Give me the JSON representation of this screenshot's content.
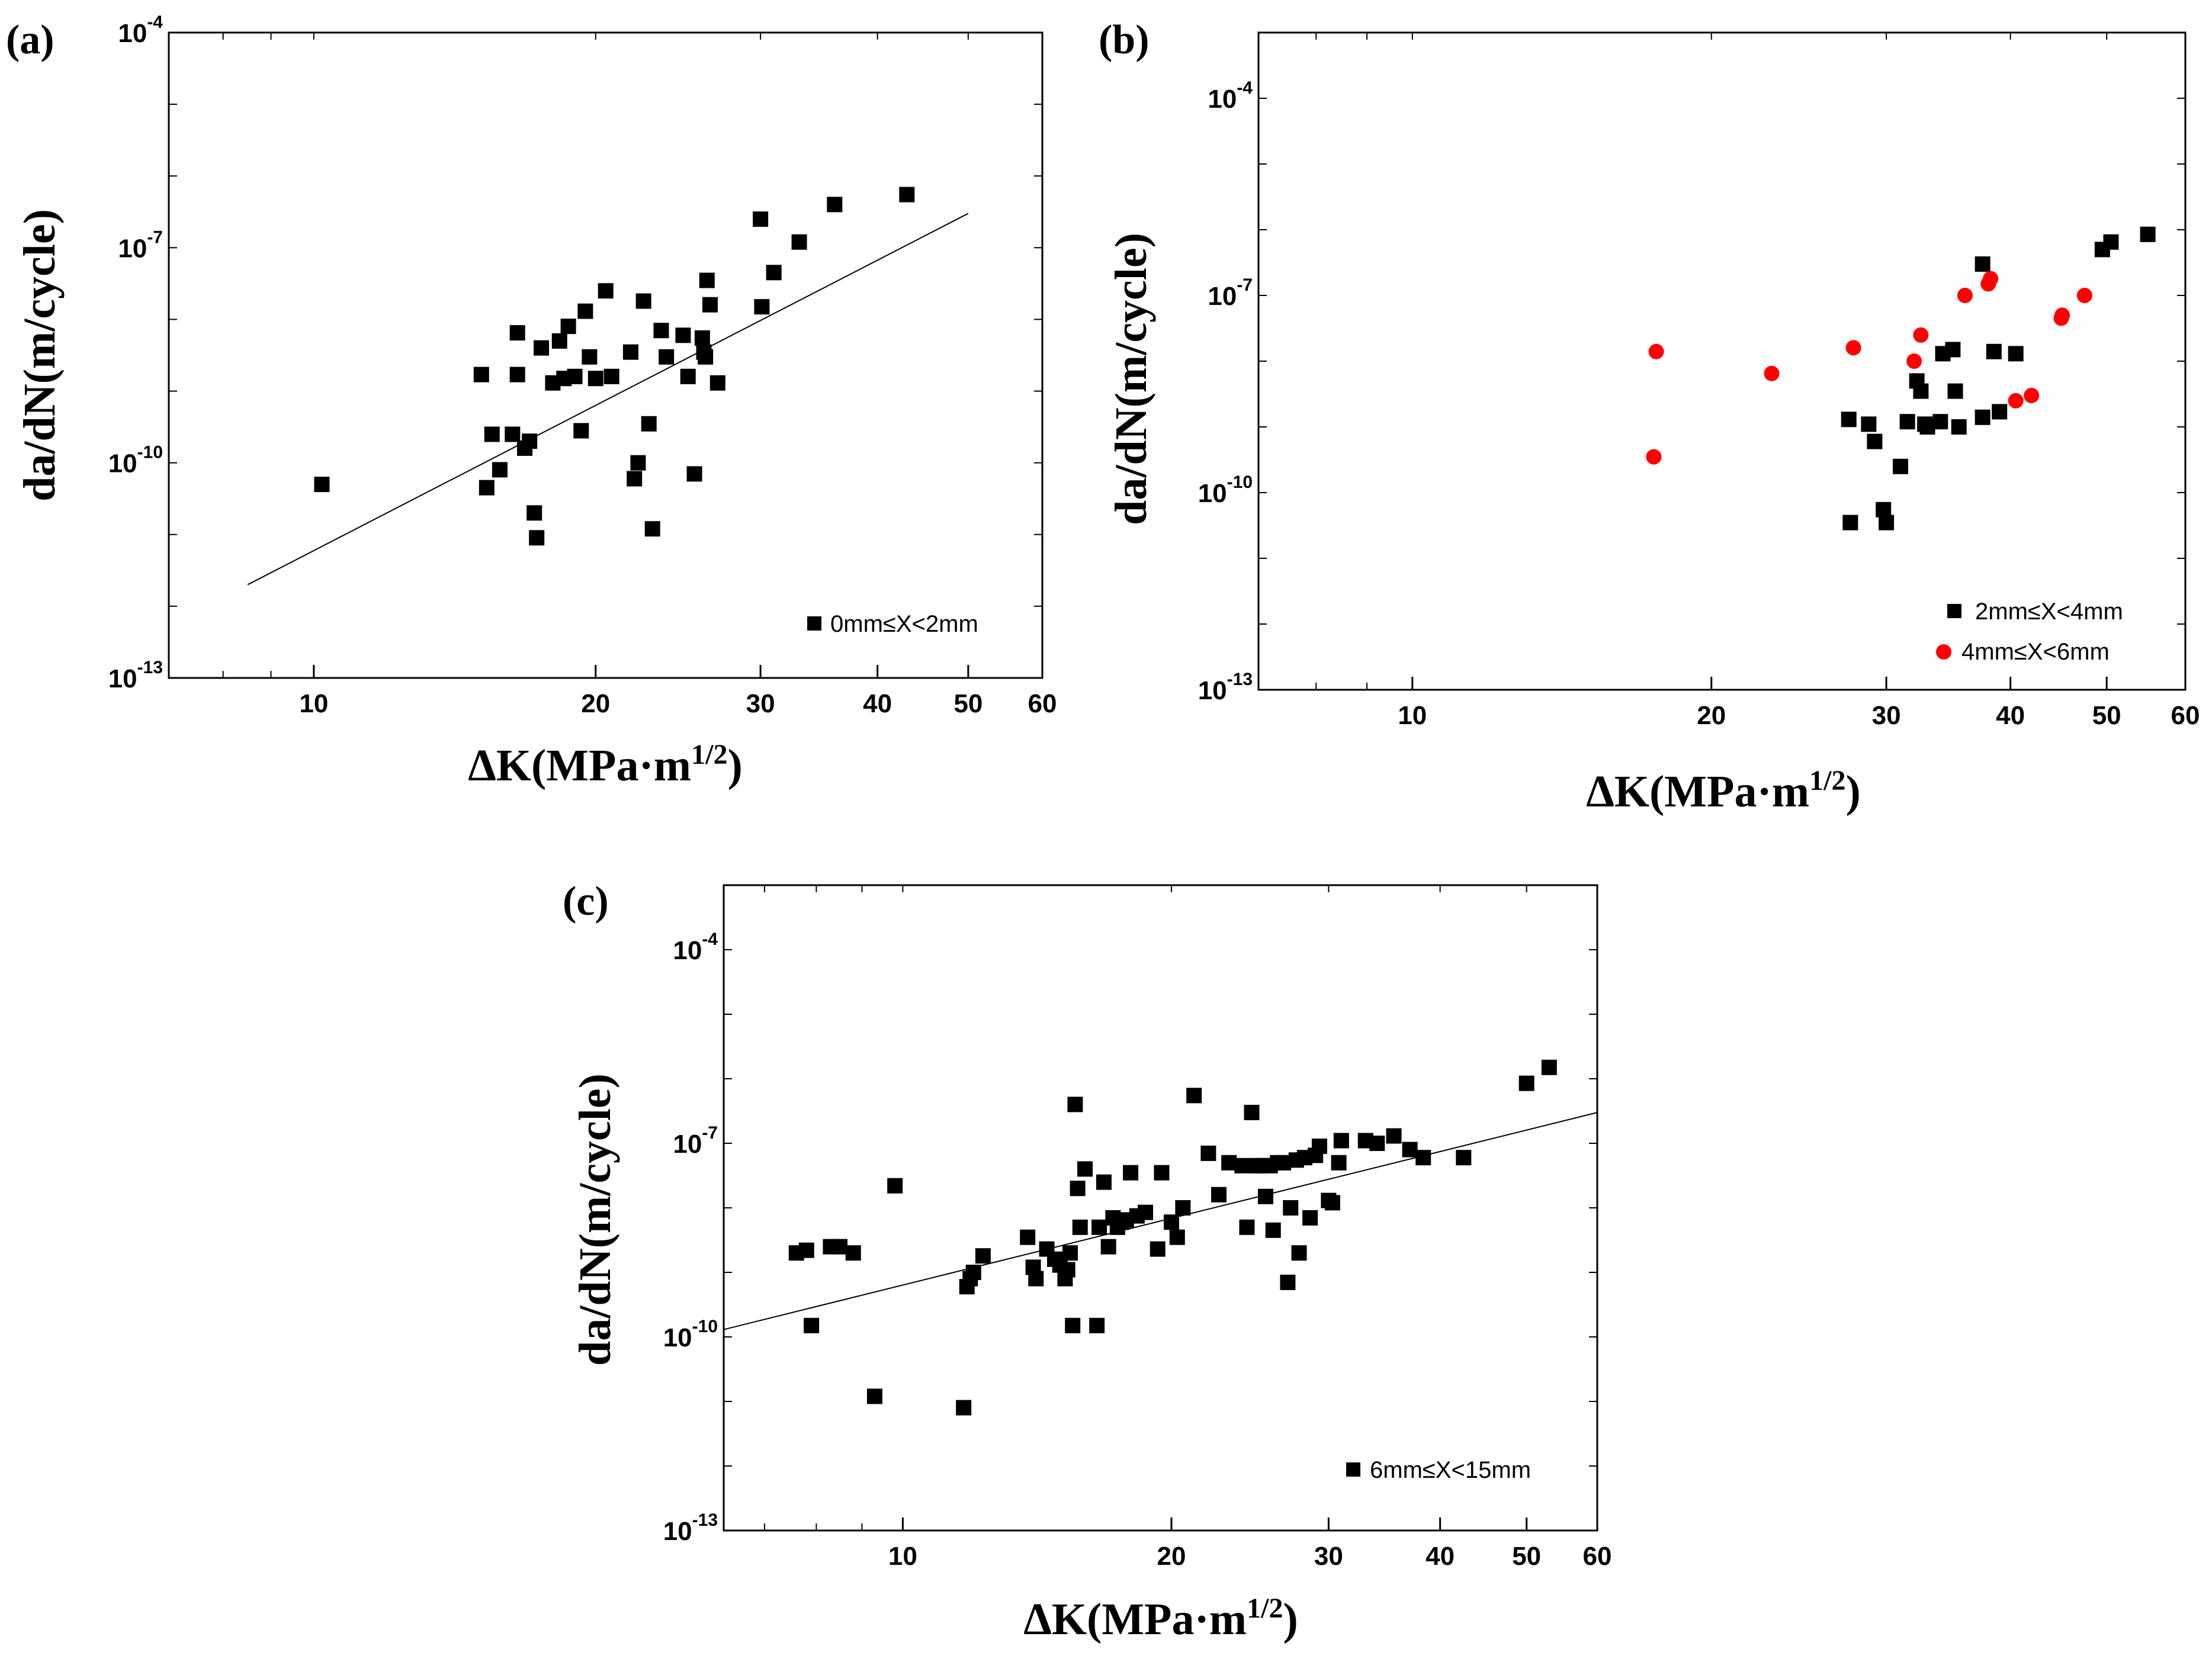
{
  "chart_data": [
    {
      "panel": "(a)",
      "type": "scatter",
      "xlabel_prefix": "ΔK",
      "xlabel_unit": "(MPa·m",
      "xlabel_exp": "1/2",
      "xlabel_close": ")",
      "ylabel_prefix": "da/dN",
      "ylabel_unit": "(m/cycle)",
      "xscale": "log",
      "yscale": "log",
      "xlim": [
        7,
        60
      ],
      "ylim": [
        1e-13,
        0.0001
      ],
      "xticks": [
        10,
        20,
        30,
        40,
        50,
        60
      ],
      "xtick_labels": [
        "10",
        "20",
        "30",
        "40",
        "50",
        "60"
      ],
      "yticks": [
        1e-13,
        1e-10,
        1e-07,
        0.0001
      ],
      "ytick_labels": [
        "10",
        "10",
        "10",
        "10"
      ],
      "ytick_exps": [
        "-13",
        "-10",
        "-7",
        "-4"
      ],
      "legend_position": "bottom-right",
      "series": [
        {
          "name": "0mm≤X<2mm",
          "marker": "square",
          "color": "#000000",
          "points": [
            [
              10.2,
              5e-11
            ],
            [
              15.1,
              1.7e-09
            ],
            [
              15.3,
              4.5e-11
            ],
            [
              15.5,
              2.5e-10
            ],
            [
              15.8,
              8e-11
            ],
            [
              16.3,
              2.5e-10
            ],
            [
              16.5,
              6.5e-09
            ],
            [
              16.5,
              1.7e-09
            ],
            [
              16.8,
              1.6e-10
            ],
            [
              17.0,
              2e-10
            ],
            [
              17.2,
              2e-11
            ],
            [
              17.3,
              9e-12
            ],
            [
              17.5,
              4e-09
            ],
            [
              18.0,
              1.3e-09
            ],
            [
              18.3,
              5e-09
            ],
            [
              18.5,
              1.5e-09
            ],
            [
              18.7,
              8e-09
            ],
            [
              19.0,
              1.6e-09
            ],
            [
              19.3,
              2.8e-10
            ],
            [
              19.5,
              1.3e-08
            ],
            [
              19.7,
              3e-09
            ],
            [
              20.0,
              1.5e-09
            ],
            [
              20.5,
              2.5e-08
            ],
            [
              20.8,
              1.6e-09
            ],
            [
              21.8,
              3.5e-09
            ],
            [
              22.0,
              6e-11
            ],
            [
              22.2,
              1e-10
            ],
            [
              22.5,
              1.8e-08
            ],
            [
              22.8,
              3.5e-10
            ],
            [
              23.0,
              1.2e-11
            ],
            [
              23.5,
              7e-09
            ],
            [
              23.8,
              3e-09
            ],
            [
              24.8,
              6e-09
            ],
            [
              25.1,
              1.6e-09
            ],
            [
              25.5,
              7e-11
            ],
            [
              26.0,
              5.5e-09
            ],
            [
              26.1,
              3.5e-09
            ],
            [
              26.2,
              3e-09
            ],
            [
              26.3,
              3.5e-08
            ],
            [
              26.5,
              1.6e-08
            ],
            [
              27.0,
              1.3e-09
            ],
            [
              30.0,
              2.5e-07
            ],
            [
              30.1,
              1.5e-08
            ],
            [
              31.0,
              4.5e-08
            ],
            [
              33.0,
              1.2e-07
            ],
            [
              36.0,
              4e-07
            ],
            [
              43.0,
              5.5e-07
            ]
          ]
        }
      ],
      "fit_line": {
        "x": [
          8.5,
          50
        ],
        "y": [
          2e-12,
          3e-07
        ]
      }
    },
    {
      "panel": "(b)",
      "type": "scatter",
      "xlabel_prefix": "ΔK",
      "xlabel_unit": "(MPa·m",
      "xlabel_exp": "1/2",
      "xlabel_close": ")",
      "ylabel_prefix": "da/dN",
      "ylabel_unit": "(m/cycle)",
      "xscale": "log",
      "yscale": "log",
      "xlim": [
        7,
        60
      ],
      "ylim": [
        1e-13,
        0.001
      ],
      "xticks": [
        10,
        20,
        30,
        40,
        50,
        60
      ],
      "xtick_labels": [
        "10",
        "20",
        "30",
        "40",
        "50",
        "60"
      ],
      "yticks": [
        1e-13,
        1e-10,
        1e-07,
        0.0001
      ],
      "ytick_labels": [
        "10",
        "10",
        "10",
        "10"
      ],
      "ytick_exps": [
        "-13",
        "-10",
        "-7",
        "-4"
      ],
      "legend_position": "bottom-right",
      "series": [
        {
          "name": "2mm≤X<4mm",
          "marker": "square",
          "color": "#000000",
          "points": [
            [
              27.5,
              1.3e-09
            ],
            [
              27.6,
              3.5e-11
            ],
            [
              28.8,
              1.1e-09
            ],
            [
              29.2,
              6e-10
            ],
            [
              29.8,
              5.5e-11
            ],
            [
              30.0,
              3.5e-11
            ],
            [
              31.0,
              2.5e-10
            ],
            [
              31.5,
              1.2e-09
            ],
            [
              32.2,
              5e-09
            ],
            [
              32.5,
              3.5e-09
            ],
            [
              32.8,
              1.1e-09
            ],
            [
              33.0,
              1e-09
            ],
            [
              34.0,
              1.2e-09
            ],
            [
              34.2,
              1.3e-08
            ],
            [
              35.0,
              1.5e-08
            ],
            [
              35.2,
              3.5e-09
            ],
            [
              35.5,
              1e-09
            ],
            [
              37.5,
              3e-07
            ],
            [
              37.5,
              1.4e-09
            ],
            [
              38.5,
              1.4e-08
            ],
            [
              39.0,
              1.7e-09
            ],
            [
              40.5,
              1.3e-08
            ],
            [
              49.5,
              5e-07
            ],
            [
              50.5,
              6.5e-07
            ],
            [
              55.0,
              8.5e-07
            ]
          ]
        },
        {
          "name": "4mm≤X<6mm",
          "marker": "circle",
          "color": "#ff0000",
          "points": [
            [
              17.5,
              3.5e-10
            ],
            [
              17.6,
              1.4e-08
            ],
            [
              23.0,
              6.5e-09
            ],
            [
              27.8,
              1.6e-08
            ],
            [
              32.0,
              1e-08
            ],
            [
              32.5,
              2.5e-08
            ],
            [
              36.0,
              1e-07
            ],
            [
              38.0,
              1.5e-07
            ],
            [
              38.2,
              1.8e-07
            ],
            [
              40.5,
              2.5e-09
            ],
            [
              42.0,
              3e-09
            ],
            [
              45.0,
              4.5e-08
            ],
            [
              45.1,
              5e-08
            ],
            [
              47.5,
              1e-07
            ]
          ]
        }
      ]
    },
    {
      "panel": "(c)",
      "type": "scatter",
      "xlabel_prefix": "ΔK",
      "xlabel_unit": "(MPa·m",
      "xlabel_exp": "1/2",
      "xlabel_close": ")",
      "ylabel_prefix": "da/dN",
      "ylabel_unit": "(m/cycle)",
      "xscale": "log",
      "yscale": "log",
      "xlim": [
        6.3,
        60
      ],
      "ylim": [
        1e-13,
        0.001
      ],
      "xticks": [
        10,
        20,
        30,
        40,
        50,
        60
      ],
      "xtick_labels": [
        "10",
        "20",
        "30",
        "40",
        "50",
        "60"
      ],
      "yticks": [
        1e-13,
        1e-10,
        1e-07,
        0.0001
      ],
      "ytick_labels": [
        "10",
        "10",
        "10",
        "10"
      ],
      "ytick_exps": [
        "-13",
        "-10",
        "-7",
        "-4"
      ],
      "legend_position": "bottom-right",
      "series": [
        {
          "name": "6mm≤X<15mm",
          "marker": "square",
          "color": "#000000",
          "points": [
            [
              7.6,
              2e-09
            ],
            [
              7.8,
              2.2e-09
            ],
            [
              7.9,
              1.5e-10
            ],
            [
              8.3,
              2.5e-09
            ],
            [
              8.5,
              2.5e-09
            ],
            [
              8.8,
              2e-09
            ],
            [
              9.3,
              1.2e-11
            ],
            [
              9.8,
              2.2e-08
            ],
            [
              11.7,
              8e-12
            ],
            [
              11.8,
              6e-10
            ],
            [
              11.9,
              8e-10
            ],
            [
              12.0,
              1e-09
            ],
            [
              12.3,
              1.8e-09
            ],
            [
              13.8,
              3.5e-09
            ],
            [
              14.0,
              1.2e-09
            ],
            [
              14.1,
              8e-10
            ],
            [
              14.5,
              2.3e-09
            ],
            [
              14.8,
              1.6e-09
            ],
            [
              15.0,
              1.3e-09
            ],
            [
              15.2,
              8e-10
            ],
            [
              15.3,
              1.1e-09
            ],
            [
              15.4,
              2e-09
            ],
            [
              15.5,
              1.5e-10
            ],
            [
              15.6,
              4e-07
            ],
            [
              15.7,
              2e-08
            ],
            [
              15.8,
              5e-09
            ],
            [
              16.0,
              4e-08
            ],
            [
              16.5,
              1.5e-10
            ],
            [
              16.6,
              5e-09
            ],
            [
              16.8,
              2.5e-08
            ],
            [
              17.0,
              2.5e-09
            ],
            [
              17.2,
              7e-09
            ],
            [
              17.4,
              5e-09
            ],
            [
              17.6,
              6e-09
            ],
            [
              17.8,
              6.5e-09
            ],
            [
              18.0,
              3.5e-08
            ],
            [
              18.3,
              7.5e-09
            ],
            [
              18.7,
              8.5e-09
            ],
            [
              19.3,
              2.3e-09
            ],
            [
              19.5,
              3.5e-08
            ],
            [
              20.0,
              6e-09
            ],
            [
              20.3,
              3.5e-09
            ],
            [
              20.6,
              1e-08
            ],
            [
              21.2,
              5.5e-07
            ],
            [
              22.0,
              7e-08
            ],
            [
              22.6,
              1.6e-08
            ],
            [
              23.2,
              5e-08
            ],
            [
              24.0,
              4.5e-08
            ],
            [
              24.3,
              5e-09
            ],
            [
              24.6,
              3e-07
            ],
            [
              24.9,
              4.5e-08
            ],
            [
              25.2,
              4.5e-08
            ],
            [
              25.5,
              1.5e-08
            ],
            [
              25.8,
              4.5e-08
            ],
            [
              26.0,
              4.5e-09
            ],
            [
              26.3,
              5e-08
            ],
            [
              26.7,
              5e-08
            ],
            [
              27.0,
              7e-10
            ],
            [
              27.2,
              1e-08
            ],
            [
              27.6,
              5.5e-08
            ],
            [
              27.8,
              2e-09
            ],
            [
              28.2,
              6e-08
            ],
            [
              28.6,
              7e-09
            ],
            [
              29.0,
              6.5e-08
            ],
            [
              29.3,
              9e-08
            ],
            [
              30.0,
              1.3e-08
            ],
            [
              30.3,
              1.2e-08
            ],
            [
              30.8,
              5e-08
            ],
            [
              31.0,
              1.1e-07
            ],
            [
              33.0,
              1.1e-07
            ],
            [
              34.0,
              1e-07
            ],
            [
              35.5,
              1.3e-07
            ],
            [
              37.0,
              8e-08
            ],
            [
              38.3,
              6e-08
            ],
            [
              42.5,
              6e-08
            ],
            [
              50.0,
              8.5e-07
            ],
            [
              53.0,
              1.5e-06
            ]
          ]
        }
      ],
      "fit_line": {
        "x": [
          6.3,
          60
        ],
        "y": [
          1.3e-10,
          3e-07
        ]
      }
    }
  ]
}
